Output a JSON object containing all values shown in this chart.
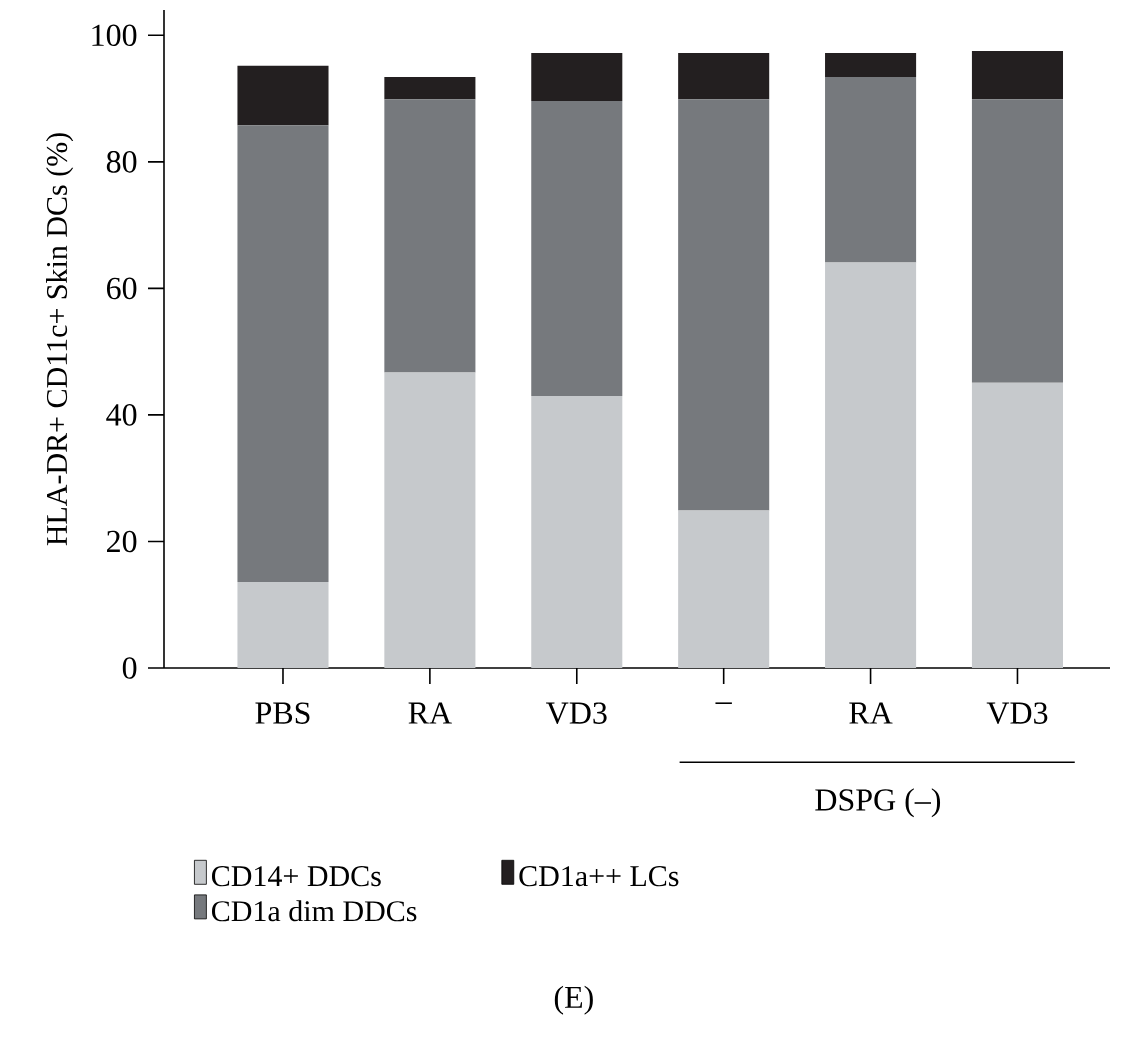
{
  "chart_data": {
    "type": "bar",
    "stacked": true,
    "ylabel": "HLA-DR+ CD11c+ Skin DCs (%)",
    "categories": [
      "PBS",
      "RA",
      "VD3",
      "–",
      "RA",
      "VD3"
    ],
    "series": [
      {
        "name": "CD14+ DDCs",
        "color": "#c6c9cc",
        "values": [
          13.6,
          46.7,
          43.0,
          24.9,
          64.1,
          45.1
        ]
      },
      {
        "name": "CD1a dim DDCs",
        "color": "#76797d",
        "values": [
          72.2,
          43.2,
          46.6,
          65.0,
          29.3,
          44.8
        ]
      },
      {
        "name": "CD1a++ LCs",
        "color": "#231f20",
        "values": [
          9.4,
          3.5,
          7.6,
          7.3,
          3.8,
          7.6
        ]
      }
    ],
    "ylim": [
      0,
      104
    ],
    "yticks": [
      0,
      20,
      40,
      60,
      80,
      100
    ],
    "grid": false,
    "legend": "bottom",
    "annotations": [
      "DSPG (–)",
      "(E)"
    ]
  }
}
